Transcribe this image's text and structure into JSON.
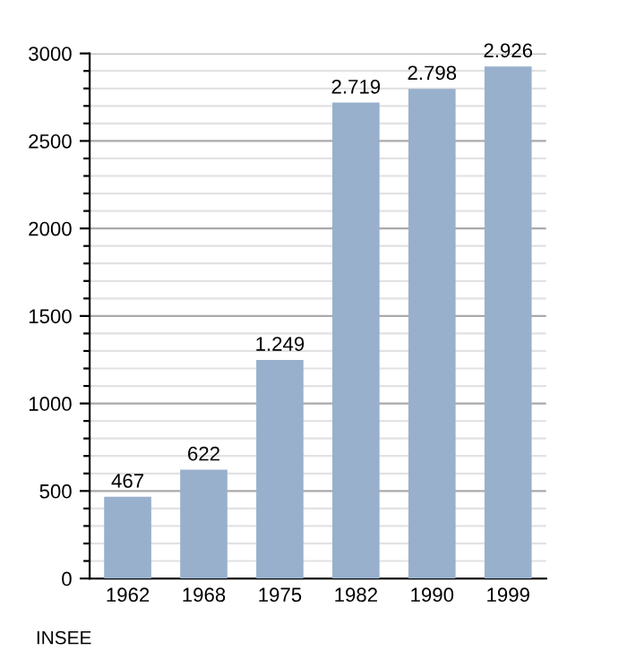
{
  "chart_data": {
    "type": "bar",
    "categories": [
      "1962",
      "1968",
      "1975",
      "1982",
      "1990",
      "1999"
    ],
    "values": [
      467,
      622,
      1249,
      2719,
      2798,
      2926
    ],
    "value_labels": [
      "467",
      "622",
      "1.249",
      "2.719",
      "2.798",
      "2.926"
    ],
    "color": "#98b0cc",
    "ylim": [
      0,
      3000
    ],
    "yticks": [
      0,
      {
        "value": 100,
        "label": null
      },
      {
        "value": 200,
        "label": null
      },
      {
        "value": 300,
        "label": null
      },
      {
        "value": 400,
        "label": null
      },
      500,
      {
        "value": 600,
        "label": null
      },
      {
        "value": 700,
        "label": null
      },
      {
        "value": 800,
        "label": null
      },
      {
        "value": 900,
        "label": null
      },
      1000,
      {
        "value": 1100,
        "label": null
      },
      {
        "value": 1200,
        "label": null
      },
      {
        "value": 1300,
        "label": null
      },
      {
        "value": 1400,
        "label": null
      },
      1500,
      {
        "value": 1600,
        "label": null
      },
      {
        "value": 1700,
        "label": null
      },
      {
        "value": 1800,
        "label": null
      },
      {
        "value": 1900,
        "label": null
      },
      2000,
      {
        "value": 2100,
        "label": null
      },
      {
        "value": 2200,
        "label": null
      },
      {
        "value": 2300,
        "label": null
      },
      {
        "value": 2400,
        "label": null
      },
      2500,
      {
        "value": 2600,
        "label": null
      },
      {
        "value": 2700,
        "label": null
      },
      {
        "value": 2800,
        "label": null
      },
      {
        "value": 2900,
        "label": null
      },
      3000
    ],
    "grid": "y",
    "legend": false,
    "annotations": [
      "INSEE"
    ]
  }
}
